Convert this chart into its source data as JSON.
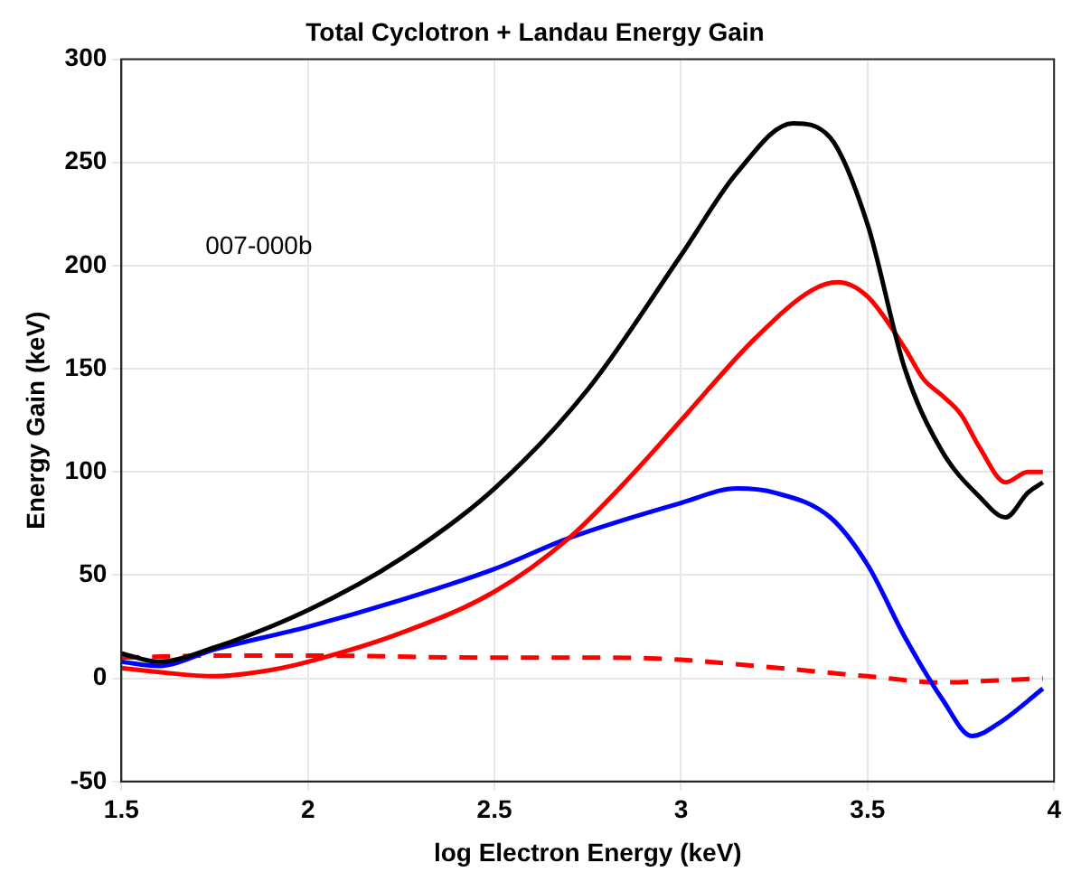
{
  "chart_data": {
    "type": "line",
    "title": "Total Cyclotron + Landau Energy Gain",
    "xlabel": "log Electron Energy (keV)",
    "ylabel": "Energy Gain (keV)",
    "annotations": [
      "007-000b"
    ],
    "xlim": [
      1.5,
      4
    ],
    "xticks": [
      1.5,
      2,
      2.5,
      3,
      3.5,
      4
    ],
    "ylim": [
      -50,
      300
    ],
    "yticks": [
      -50,
      0,
      50,
      100,
      150,
      200,
      250,
      300
    ],
    "grid": true,
    "legend": false,
    "series": [
      {
        "color": "#000000",
        "x": [
          1.5,
          1.6,
          1.75,
          2,
          2.25,
          2.5,
          2.75,
          3,
          3.15,
          3.3,
          3.4,
          3.5,
          3.6,
          3.7,
          3.8,
          3.87,
          3.93,
          3.97
        ],
        "values": [
          12,
          8,
          15,
          33,
          58,
          92,
          140,
          205,
          245,
          269,
          262,
          220,
          150,
          110,
          88,
          78,
          90,
          95
        ]
      },
      {
        "color": "#ff0000",
        "x": [
          1.5,
          1.6,
          1.75,
          1.9,
          2,
          2.25,
          2.5,
          2.7,
          2.85,
          3,
          3.2,
          3.35,
          3.42,
          3.5,
          3.6,
          3.65,
          3.7,
          3.75,
          3.8,
          3.87,
          3.93,
          3.97
        ],
        "values": [
          5,
          3,
          1,
          4,
          8,
          22,
          42,
          68,
          95,
          125,
          165,
          188,
          192,
          185,
          160,
          145,
          137,
          128,
          112,
          95,
          100,
          100
        ]
      },
      {
        "color": "#0000ff",
        "x": [
          1.5,
          1.6,
          1.75,
          2,
          2.25,
          2.5,
          2.7,
          3,
          3.15,
          3.25,
          3.4,
          3.5,
          3.6,
          3.7,
          3.78,
          3.85,
          3.97
        ],
        "values": [
          8,
          6,
          14,
          25,
          38,
          53,
          68,
          85,
          92,
          90,
          78,
          55,
          20,
          -10,
          -28,
          -22,
          -5
        ]
      },
      {
        "color": "#ff0000",
        "line_style": "dashed",
        "x": [
          1.5,
          1.75,
          2,
          2.5,
          2.8,
          3,
          3.2,
          3.5,
          3.7,
          3.85,
          3.97
        ],
        "values": [
          10,
          11,
          11,
          10,
          10,
          9,
          6,
          1,
          -2,
          -1,
          0
        ]
      }
    ]
  }
}
